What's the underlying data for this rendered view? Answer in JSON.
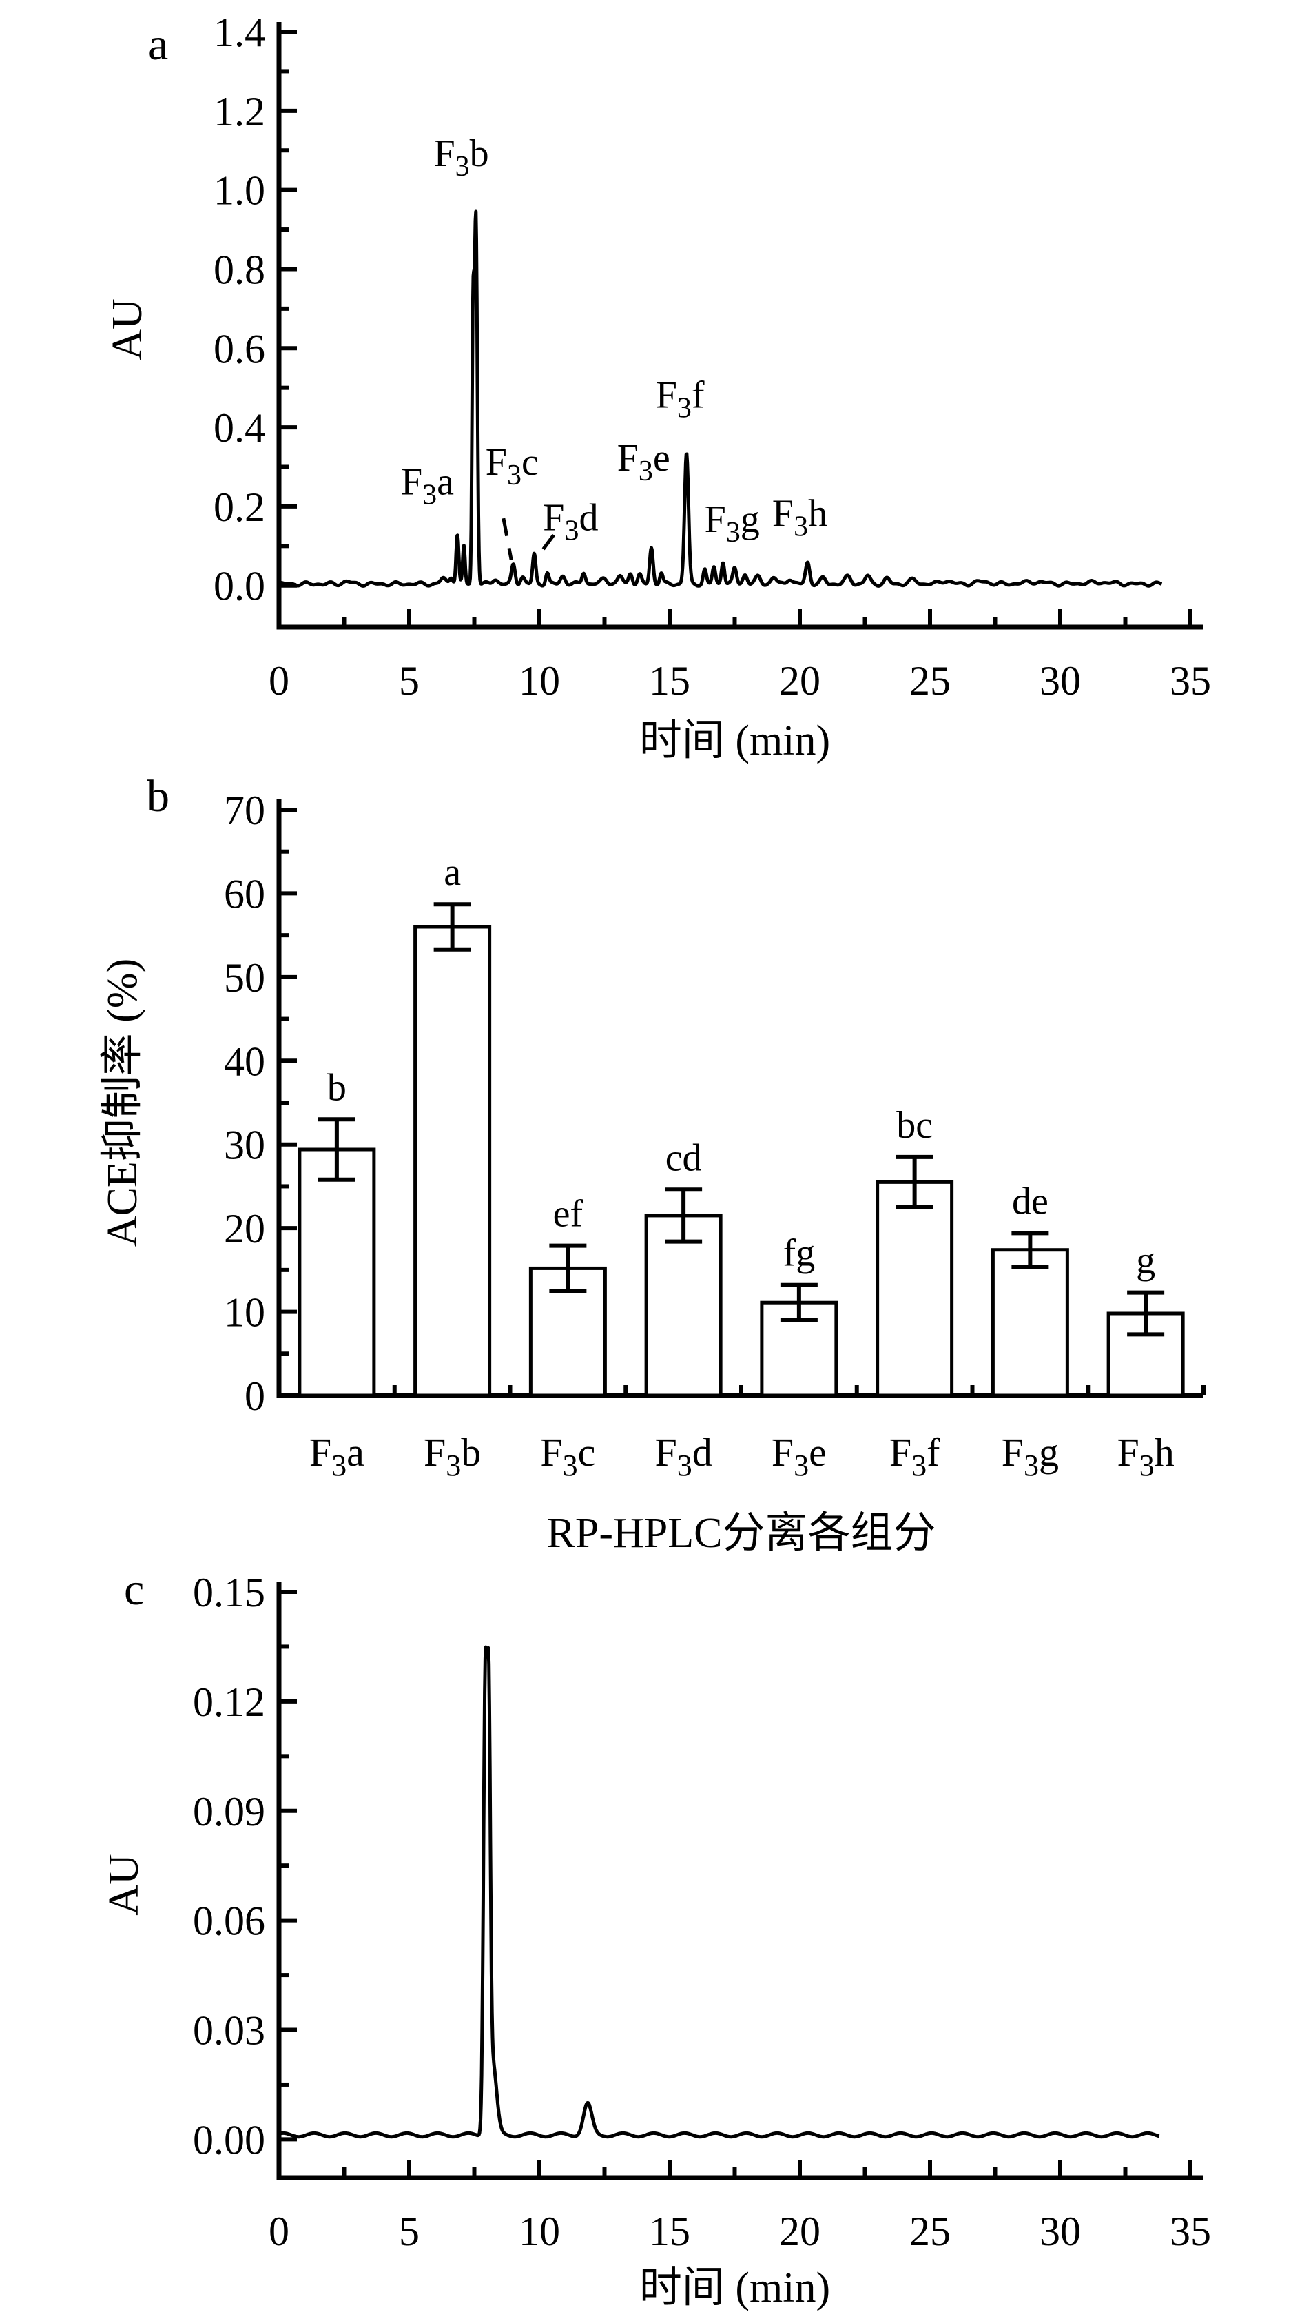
{
  "figure": {
    "background": "#ffffff",
    "ink": "#000000",
    "description_labels": {
      "panel_a": "a",
      "panel_b": "b",
      "panel_c": "c"
    }
  },
  "chart_data": [
    {
      "id": "a",
      "type": "line",
      "panel_label": "a",
      "xlabel": "时间 (min)",
      "ylabel": "AU",
      "xlim": [
        0,
        35
      ],
      "ylim": [
        -0.105,
        1.4
      ],
      "grid": false,
      "x_ticks": [
        0,
        5,
        10,
        15,
        20,
        25,
        30,
        35
      ],
      "x_tick_labels": [
        "0",
        "5",
        "10",
        "15",
        "20",
        "25",
        "30",
        "35"
      ],
      "x_minor_ticks": [
        2.5,
        7.5,
        12.5,
        17.5,
        22.5,
        27.5,
        32.5
      ],
      "y_ticks": [
        0.0,
        0.2,
        0.4,
        0.6,
        0.8,
        1.0,
        1.2,
        1.4
      ],
      "y_tick_labels": [
        "0.0",
        "0.2",
        "0.4",
        "0.6",
        "0.8",
        "1.0",
        "1.2",
        "1.4"
      ],
      "trace_range": [
        0,
        33.9
      ],
      "baseline": 0.004,
      "trace_noise": [
        [
          0.003,
          7.3,
          0.0
        ],
        [
          0.0022,
          12.7,
          1.3
        ]
      ],
      "trace_peaks": [
        [
          2.6,
          0.006,
          0.15
        ],
        [
          6.3,
          0.014,
          0.1
        ],
        [
          6.62,
          0.018,
          0.07
        ],
        [
          6.85,
          0.125,
          0.05
        ],
        [
          7.1,
          0.095,
          0.045
        ],
        [
          7.45,
          0.62,
          0.04
        ],
        [
          7.56,
          0.93,
          0.055
        ],
        [
          8.3,
          0.012,
          0.1
        ],
        [
          9.0,
          0.048,
          0.07
        ],
        [
          9.35,
          0.018,
          0.08
        ],
        [
          9.8,
          0.075,
          0.06
        ],
        [
          10.3,
          0.028,
          0.06
        ],
        [
          10.9,
          0.02,
          0.09
        ],
        [
          11.7,
          0.03,
          0.07
        ],
        [
          12.5,
          0.014,
          0.12
        ],
        [
          13.1,
          0.02,
          0.09
        ],
        [
          13.5,
          0.028,
          0.07
        ],
        [
          13.85,
          0.022,
          0.07
        ],
        [
          14.3,
          0.092,
          0.065
        ],
        [
          14.68,
          0.028,
          0.06
        ],
        [
          15.65,
          0.33,
          0.075
        ],
        [
          16.35,
          0.036,
          0.06
        ],
        [
          16.7,
          0.042,
          0.06
        ],
        [
          17.05,
          0.058,
          0.06
        ],
        [
          17.5,
          0.04,
          0.07
        ],
        [
          17.9,
          0.024,
          0.08
        ],
        [
          18.4,
          0.018,
          0.1
        ],
        [
          19.0,
          0.016,
          0.1
        ],
        [
          19.6,
          0.014,
          0.1
        ],
        [
          20.3,
          0.054,
          0.08
        ],
        [
          20.9,
          0.014,
          0.1
        ],
        [
          21.85,
          0.018,
          0.12
        ],
        [
          22.6,
          0.02,
          0.1
        ],
        [
          23.35,
          0.013,
          0.1
        ],
        [
          24.35,
          0.01,
          0.15
        ],
        [
          25.6,
          0.008,
          0.2
        ],
        [
          27.0,
          0.006,
          0.25
        ],
        [
          29.0,
          0.005,
          0.4
        ],
        [
          31.5,
          0.004,
          0.5
        ]
      ],
      "peak_labels": [
        {
          "base": "F",
          "sub": "3",
          "suffix": "a",
          "x": 5.7,
          "y": 0.23
        },
        {
          "base": "F",
          "sub": "3",
          "suffix": "b",
          "x": 7.0,
          "y": 1.06
        },
        {
          "base": "F",
          "sub": "3",
          "suffix": "c",
          "x": 8.95,
          "y": 0.28
        },
        {
          "base": "F",
          "sub": "3",
          "suffix": "d",
          "x": 11.2,
          "y": 0.14
        },
        {
          "base": "F",
          "sub": "3",
          "suffix": "e",
          "x": 14.0,
          "y": 0.29
        },
        {
          "base": "F",
          "sub": "3",
          "suffix": "f",
          "x": 15.4,
          "y": 0.45
        },
        {
          "base": "F",
          "sub": "3",
          "suffix": "g",
          "x": 17.4,
          "y": 0.135
        },
        {
          "base": "F",
          "sub": "3",
          "suffix": "h",
          "x": 20.0,
          "y": 0.15
        }
      ],
      "leader_lines": [
        {
          "x1": 8.62,
          "y1": 0.17,
          "x2": 8.92,
          "y2": 0.065
        },
        {
          "x1": 10.55,
          "y1": 0.128,
          "x2": 10.15,
          "y2": 0.092
        }
      ]
    },
    {
      "id": "b",
      "type": "bar",
      "panel_label": "b",
      "xlabel": "RP-HPLC分离各组分",
      "ylabel": "ACE抑制率 (%)",
      "ylim": [
        0,
        70
      ],
      "grid": false,
      "y_ticks": [
        0,
        10,
        20,
        30,
        40,
        50,
        60,
        70
      ],
      "y_tick_labels": [
        "0",
        "10",
        "20",
        "30",
        "40",
        "50",
        "60",
        "70"
      ],
      "y_minor_step": 5,
      "bar_fill": "#ffffff",
      "bar_stroke": "#000000",
      "categories": [
        {
          "base": "F",
          "sub": "3",
          "suffix": "a",
          "value": 29.4,
          "error": 3.6,
          "letter": "b"
        },
        {
          "base": "F",
          "sub": "3",
          "suffix": "b",
          "value": 56.0,
          "error": 2.7,
          "letter": "a"
        },
        {
          "base": "F",
          "sub": "3",
          "suffix": "c",
          "value": 15.2,
          "error": 2.7,
          "letter": "ef"
        },
        {
          "base": "F",
          "sub": "3",
          "suffix": "d",
          "value": 21.5,
          "error": 3.1,
          "letter": "cd"
        },
        {
          "base": "F",
          "sub": "3",
          "suffix": "e",
          "value": 11.1,
          "error": 2.1,
          "letter": "fg"
        },
        {
          "base": "F",
          "sub": "3",
          "suffix": "f",
          "value": 25.5,
          "error": 3.0,
          "letter": "bc"
        },
        {
          "base": "F",
          "sub": "3",
          "suffix": "g",
          "value": 17.4,
          "error": 2.0,
          "letter": "de"
        },
        {
          "base": "F",
          "sub": "3",
          "suffix": "h",
          "value": 9.8,
          "error": 2.5,
          "letter": "g"
        }
      ]
    },
    {
      "id": "c",
      "type": "line",
      "panel_label": "c",
      "xlabel": "时间 (min)",
      "ylabel": "AU",
      "xlim": [
        0,
        35
      ],
      "ylim": [
        -0.0105,
        0.15
      ],
      "grid": false,
      "x_ticks": [
        0,
        5,
        10,
        15,
        20,
        25,
        30,
        35
      ],
      "x_tick_labels": [
        "0",
        "5",
        "10",
        "15",
        "20",
        "25",
        "30",
        "35"
      ],
      "x_minor_ticks": [
        2.5,
        7.5,
        12.5,
        17.5,
        22.5,
        27.5,
        32.5
      ],
      "y_ticks": [
        0.0,
        0.03,
        0.06,
        0.09,
        0.12,
        0.15
      ],
      "y_tick_labels": [
        "0.00",
        "0.03",
        "0.06",
        "0.09",
        "0.12",
        "0.15"
      ],
      "trace_range": [
        0,
        33.8
      ],
      "baseline": 0.0012,
      "trace_noise": [
        [
          0.0005,
          5.3,
          0.7
        ]
      ],
      "trace_peaks": [
        [
          7.92,
          0.121,
          0.07
        ],
        [
          8.06,
          0.1,
          0.06
        ],
        [
          8.2,
          0.02,
          0.15
        ],
        [
          11.85,
          0.0085,
          0.16
        ]
      ],
      "peak_labels": [],
      "leader_lines": []
    }
  ]
}
